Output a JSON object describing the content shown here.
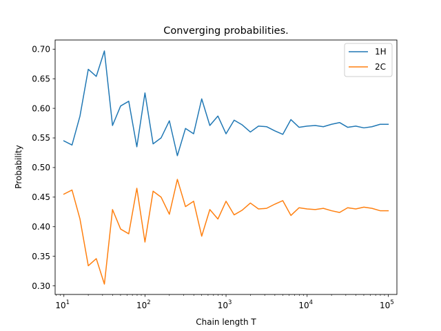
{
  "chart_data": {
    "type": "line",
    "title": "Converging probabilities.",
    "xlabel": "Chain length T",
    "ylabel": "Probability",
    "xscale": "log",
    "xlim": [
      7.8,
      128000
    ],
    "ylim": [
      0.2855,
      0.7155
    ],
    "xticks": [
      {
        "value": 10,
        "base": "10",
        "exp": "1"
      },
      {
        "value": 100,
        "base": "10",
        "exp": "2"
      },
      {
        "value": 1000,
        "base": "10",
        "exp": "3"
      },
      {
        "value": 10000,
        "base": "10",
        "exp": "4"
      },
      {
        "value": 100000,
        "base": "10",
        "exp": "5"
      }
    ],
    "yticks": [
      {
        "value": 0.3,
        "label": "0.30"
      },
      {
        "value": 0.35,
        "label": "0.35"
      },
      {
        "value": 0.4,
        "label": "0.40"
      },
      {
        "value": 0.45,
        "label": "0.45"
      },
      {
        "value": 0.5,
        "label": "0.50"
      },
      {
        "value": 0.55,
        "label": "0.55"
      },
      {
        "value": 0.6,
        "label": "0.60"
      },
      {
        "value": 0.65,
        "label": "0.65"
      },
      {
        "value": 0.7,
        "label": "0.70"
      }
    ],
    "grid": false,
    "legend_position": "top-right",
    "x": [
      10,
      12.6,
      15.8,
      20,
      25.1,
      31.6,
      39.8,
      50.1,
      63.1,
      79.4,
      100,
      126,
      158,
      200,
      251,
      316,
      398,
      501,
      631,
      794,
      1000,
      1259,
      1585,
      1995,
      2512,
      3162,
      3981,
      5012,
      6310,
      7943,
      10000,
      12589,
      15849,
      19953,
      25119,
      31623,
      39811,
      50119,
      63096,
      79433,
      100000
    ],
    "series": [
      {
        "name": "1H",
        "color": "#1f77b4",
        "values": [
          0.545,
          0.538,
          0.587,
          0.666,
          0.654,
          0.697,
          0.571,
          0.604,
          0.612,
          0.535,
          0.626,
          0.54,
          0.55,
          0.579,
          0.52,
          0.566,
          0.557,
          0.616,
          0.571,
          0.587,
          0.557,
          0.58,
          0.572,
          0.56,
          0.57,
          0.569,
          0.562,
          0.556,
          0.581,
          0.568,
          0.57,
          0.571,
          0.569,
          0.573,
          0.576,
          0.568,
          0.57,
          0.567,
          0.569,
          0.573,
          0.573
        ]
      },
      {
        "name": "2C",
        "color": "#ff7f0e",
        "values": [
          0.455,
          0.462,
          0.413,
          0.334,
          0.346,
          0.303,
          0.429,
          0.396,
          0.388,
          0.465,
          0.374,
          0.46,
          0.45,
          0.421,
          0.48,
          0.434,
          0.443,
          0.384,
          0.429,
          0.413,
          0.443,
          0.42,
          0.428,
          0.44,
          0.43,
          0.431,
          0.438,
          0.444,
          0.419,
          0.432,
          0.43,
          0.429,
          0.431,
          0.427,
          0.424,
          0.432,
          0.43,
          0.433,
          0.431,
          0.427,
          0.427
        ]
      }
    ]
  }
}
